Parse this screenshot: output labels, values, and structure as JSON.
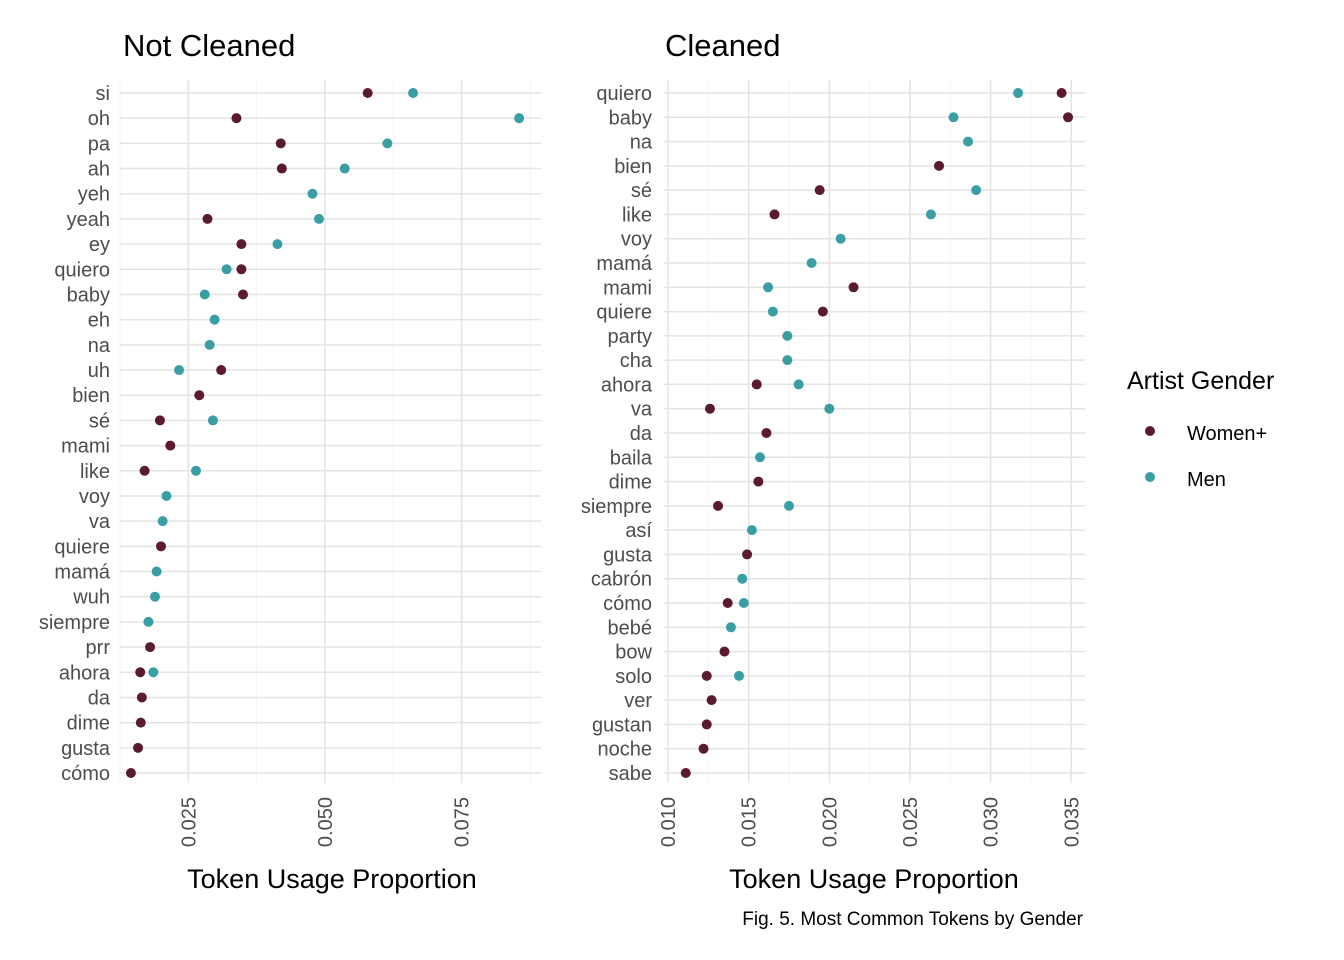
{
  "caption": "Fig. 5. Most Common Tokens by Gender",
  "legend": {
    "title": "Artist Gender",
    "items": [
      {
        "label": "Women+",
        "color": "#5b1a33"
      },
      {
        "label": "Men",
        "color": "#3a9ea5"
      }
    ]
  },
  "chart_data": [
    {
      "type": "scatter",
      "title": "Not Cleaned",
      "xlabel": "Token Usage Proportion",
      "ylabel": "",
      "xlim": [
        0.0125,
        0.0895
      ],
      "xticks": [
        0.025,
        0.05,
        0.075
      ],
      "xtick_labels": [
        "0.025",
        "0.050",
        "0.075"
      ],
      "grid": true,
      "categories": [
        "si",
        "oh",
        "pa",
        "ah",
        "yeh",
        "yeah",
        "ey",
        "quiero",
        "baby",
        "eh",
        "na",
        "uh",
        "bien",
        "sé",
        "mami",
        "like",
        "voy",
        "va",
        "quiere",
        "mamá",
        "wuh",
        "siempre",
        "prr",
        "ahora",
        "da",
        "dime",
        "gusta",
        "cómo"
      ],
      "series": [
        {
          "name": "Women+",
          "values": [
            0.0578,
            0.0338,
            0.0419,
            0.0421,
            null,
            0.0285,
            0.0347,
            0.0347,
            0.035,
            null,
            null,
            0.031,
            0.027,
            0.0198,
            0.0217,
            0.017,
            null,
            null,
            0.02,
            null,
            null,
            null,
            0.018,
            0.0162,
            0.0165,
            0.0163,
            0.0158,
            0.0145
          ]
        },
        {
          "name": "Men",
          "values": [
            0.0661,
            0.0855,
            0.0614,
            0.0536,
            0.0477,
            0.0489,
            0.0413,
            0.032,
            0.028,
            0.0298,
            0.0289,
            0.0233,
            null,
            0.0295,
            null,
            0.0264,
            0.021,
            0.0203,
            null,
            0.0192,
            0.0189,
            0.0177,
            null,
            0.0186,
            null,
            null,
            null,
            null
          ]
        }
      ]
    },
    {
      "type": "scatter",
      "title": "Cleaned",
      "xlabel": "Token Usage Proportion",
      "ylabel": "",
      "xlim": [
        0.00975,
        0.03585
      ],
      "xticks": [
        0.01,
        0.015,
        0.02,
        0.025,
        0.03,
        0.035
      ],
      "xtick_labels": [
        "0.010",
        "0.015",
        "0.020",
        "0.025",
        "0.030",
        "0.035"
      ],
      "grid": true,
      "categories": [
        "quiero",
        "baby",
        "na",
        "bien",
        "sé",
        "like",
        "voy",
        "mamá",
        "mami",
        "quiere",
        "party",
        "cha",
        "ahora",
        "va",
        "da",
        "baila",
        "dime",
        "siempre",
        "así",
        "gusta",
        "cabrón",
        "cómo",
        "bebé",
        "bow",
        "solo",
        "ver",
        "gustan",
        "noche",
        "sabe"
      ],
      "series": [
        {
          "name": "Women+",
          "values": [
            0.0344,
            0.0348,
            null,
            0.0268,
            0.0194,
            0.0166,
            null,
            null,
            0.0215,
            0.0196,
            null,
            null,
            0.0155,
            0.0126,
            0.0161,
            null,
            0.0156,
            0.0131,
            null,
            0.0149,
            null,
            0.0137,
            null,
            0.0135,
            0.0124,
            0.0127,
            0.0124,
            0.0122,
            0.0111
          ]
        },
        {
          "name": "Men",
          "values": [
            0.0317,
            0.0277,
            0.0286,
            null,
            0.0291,
            0.0263,
            0.0207,
            0.0189,
            0.0162,
            0.0165,
            0.0174,
            0.0174,
            0.0181,
            0.02,
            null,
            0.0157,
            null,
            0.0175,
            0.0152,
            null,
            0.0146,
            0.0147,
            0.0139,
            null,
            0.0144,
            null,
            null,
            null,
            null
          ]
        }
      ]
    }
  ]
}
